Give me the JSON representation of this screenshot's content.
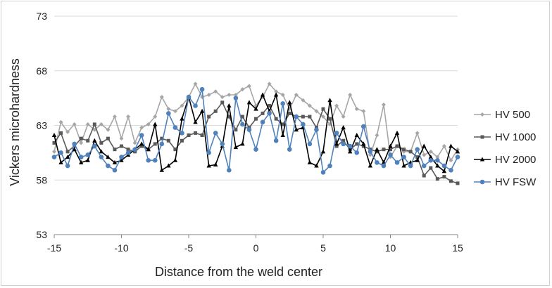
{
  "chart_data": {
    "type": "line",
    "xlabel": "Distance from the weld center",
    "ylabel": "Vickers microhardness",
    "xlim": [
      -15,
      15
    ],
    "ylim": [
      53,
      73
    ],
    "xticks": [
      "-15",
      "-10",
      "-5",
      "0",
      "5",
      "10",
      "15"
    ],
    "yticks": [
      "53",
      "58",
      "63",
      "68",
      "73"
    ],
    "grid": "horizontal",
    "legend_position": "right",
    "series": [
      {
        "name": "HV 500",
        "color": "#a6a6a6",
        "marker": "diamond",
        "x": [
          -15,
          -14.5,
          -14,
          -13.5,
          -13,
          -12.5,
          -12,
          -11.5,
          -11,
          -10.5,
          -10,
          -9.5,
          -9,
          -8.5,
          -8,
          -7.5,
          -7,
          -6.5,
          -6,
          -5.5,
          -5,
          -4.5,
          -4,
          -3.5,
          -3,
          -2.5,
          -2,
          -1.5,
          -1,
          -0.5,
          0,
          0.5,
          1,
          1.5,
          2,
          2.5,
          3,
          3.5,
          4,
          4.5,
          5,
          5.5,
          6,
          6.5,
          7,
          7.5,
          8,
          8.5,
          9,
          9.5,
          10,
          10.5,
          11,
          11.5,
          12,
          12.5,
          13,
          13.5,
          14,
          14.5,
          15
        ],
        "y": [
          60.6,
          63.3,
          62.4,
          63.1,
          61.4,
          63.1,
          62.6,
          63.1,
          62.6,
          63.8,
          61.8,
          63.8,
          61.4,
          62.8,
          63.1,
          63.8,
          65.6,
          64.5,
          64.3,
          64.8,
          65.6,
          66.8,
          65.6,
          65.8,
          66.1,
          65.6,
          65.8,
          65.8,
          66.3,
          66.6,
          64.8,
          65.6,
          66.8,
          66.1,
          65.8,
          64.5,
          65.8,
          65.3,
          64.8,
          64.3,
          63.8,
          63.1,
          64.8,
          63.8,
          65.8,
          64.5,
          64.3,
          60.3,
          62.1,
          64.9,
          60.1,
          61.1,
          60.6,
          60.6,
          62.3,
          60.3,
          60.6,
          60.1,
          61.1,
          59.8,
          60.8
        ]
      },
      {
        "name": "HV 1000",
        "color": "#595959",
        "marker": "square",
        "x": [
          -15,
          -14.5,
          -14,
          -13.5,
          -13,
          -12.5,
          -12,
          -11.5,
          -11,
          -10.5,
          -10,
          -9.5,
          -9,
          -8.5,
          -8,
          -7.5,
          -7,
          -6.5,
          -6,
          -5.5,
          -5,
          -4.5,
          -4,
          -3.5,
          -3,
          -2.5,
          -2,
          -1.5,
          -1,
          -0.5,
          0,
          0.5,
          1,
          1.5,
          2,
          2.5,
          3,
          3.5,
          4,
          4.5,
          5,
          5.5,
          6,
          6.5,
          7,
          7.5,
          8,
          8.5,
          9,
          9.5,
          10,
          10.5,
          11,
          11.5,
          12,
          12.5,
          13,
          13.5,
          14,
          14.5,
          15
        ],
        "y": [
          61.4,
          62.3,
          60.6,
          61.1,
          61.8,
          61.6,
          63.1,
          61.4,
          61.8,
          60.8,
          61.1,
          60.8,
          60.6,
          61.1,
          60.8,
          61.3,
          61.8,
          61.6,
          60.8,
          61.6,
          62.1,
          62.3,
          62.1,
          63.8,
          64.3,
          65.1,
          63.8,
          62.6,
          63.8,
          62.8,
          63.6,
          64.1,
          64.8,
          63.6,
          63.1,
          64.1,
          63.8,
          63.8,
          63.8,
          62.8,
          64.5,
          63.6,
          61.1,
          61.6,
          60.8,
          61.3,
          61.1,
          60.8,
          60.6,
          60.8,
          60.8,
          61.1,
          60.8,
          60.6,
          60.1,
          58.4,
          59.1,
          58.1,
          58.3,
          57.9,
          57.7
        ]
      },
      {
        "name": "HV 2000",
        "color": "#000000",
        "marker": "triangle",
        "x": [
          -15,
          -14.5,
          -14,
          -13.5,
          -13,
          -12.5,
          -12,
          -11.5,
          -11,
          -10.5,
          -10,
          -9.5,
          -9,
          -8.5,
          -8,
          -7.5,
          -7,
          -6.5,
          -6,
          -5.5,
          -5,
          -4.5,
          -4,
          -3.5,
          -3,
          -2.5,
          -2,
          -1.5,
          -1,
          -0.5,
          0,
          0.5,
          1,
          1.5,
          2,
          2.5,
          3,
          3.5,
          4,
          4.5,
          5,
          5.5,
          6,
          6.5,
          7,
          7.5,
          8,
          8.5,
          9,
          9.5,
          10,
          10.5,
          11,
          11.5,
          12,
          12.5,
          13,
          13.5,
          14,
          14.5,
          15
        ],
        "y": [
          62.1,
          59.6,
          60.1,
          60.8,
          59.6,
          59.8,
          61.6,
          60.6,
          60.1,
          59.6,
          59.8,
          60.3,
          60.8,
          61.3,
          60.8,
          63.1,
          58.9,
          59.3,
          59.8,
          63.6,
          65.6,
          63.3,
          64.3,
          59.3,
          59.4,
          61.1,
          64.8,
          61.0,
          61.3,
          65.1,
          64.5,
          65.8,
          64.3,
          65.8,
          62.1,
          65.1,
          62.6,
          62.8,
          59.6,
          59.3,
          60.6,
          65.3,
          61.3,
          62.8,
          60.6,
          62.1,
          61.3,
          59.3,
          60.8,
          59.6,
          61.1,
          62.3,
          59.3,
          59.6,
          59.8,
          61.1,
          60.1,
          59.3,
          58.8,
          61.1,
          60.6
        ]
      },
      {
        "name": "HV FSW",
        "color": "#4f81bd",
        "marker": "circle",
        "x": [
          -15,
          -14.5,
          -14,
          -13.5,
          -13,
          -12.5,
          -12,
          -11.5,
          -11,
          -10.5,
          -10,
          -9.5,
          -9,
          -8.5,
          -8,
          -7.5,
          -7,
          -6.5,
          -6,
          -5.5,
          -5,
          -4.5,
          -4,
          -3.5,
          -3,
          -2.5,
          -2,
          -1.5,
          -1,
          -0.5,
          0,
          0.5,
          1,
          1.5,
          2,
          2.5,
          3,
          3.5,
          4,
          4.5,
          5,
          5.5,
          6,
          6.5,
          7,
          7.5,
          8,
          8.5,
          9,
          9.5,
          10,
          10.5,
          11,
          11.5,
          12,
          12.5,
          13,
          13.5,
          14,
          14.5,
          15
        ],
        "y": [
          60.1,
          60.5,
          59.3,
          61.3,
          60.1,
          60.3,
          61.1,
          60.1,
          59.3,
          58.9,
          60.1,
          60.5,
          60.8,
          62.1,
          59.8,
          59.8,
          61.3,
          64.1,
          62.8,
          62.3,
          65.6,
          64.8,
          66.3,
          60.5,
          62.3,
          61.3,
          58.9,
          65.5,
          63.1,
          62.6,
          60.8,
          63.3,
          64.1,
          61.6,
          65.0,
          60.8,
          63.8,
          63.1,
          61.3,
          62.6,
          58.7,
          59.3,
          62.3,
          61.3,
          61.1,
          60.5,
          62.9,
          60.6,
          59.6,
          59.3,
          60.3,
          59.6,
          60.1,
          59.3,
          60.8,
          59.3,
          59.8,
          59.8,
          59.3,
          58.9,
          60.1
        ]
      }
    ]
  }
}
